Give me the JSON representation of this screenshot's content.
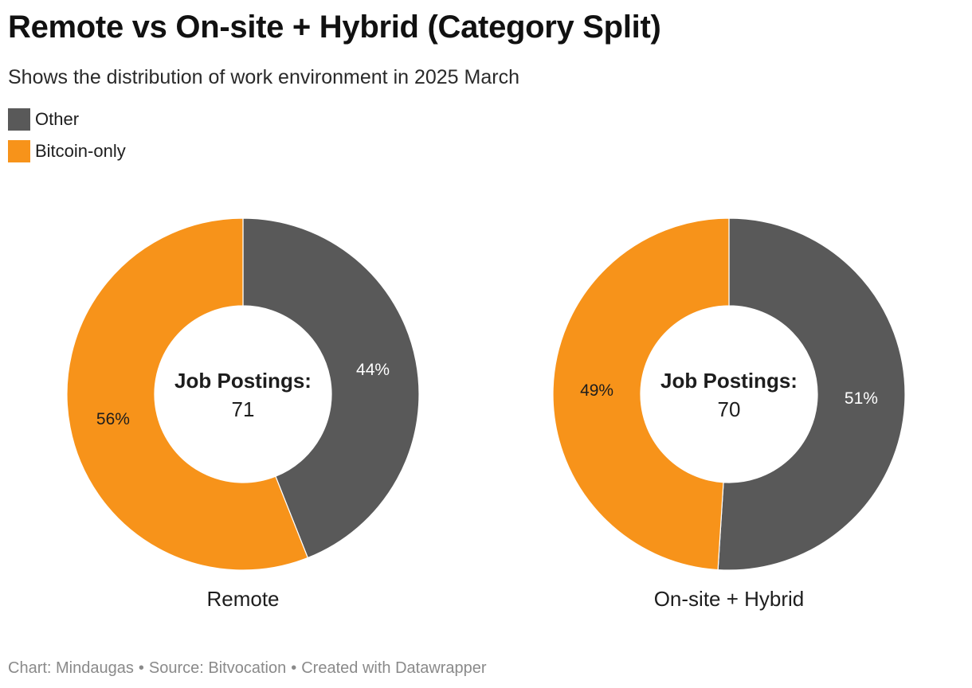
{
  "header": {
    "title": "Remote vs On-site + Hybrid (Category Split)",
    "subtitle": "Shows the distribution of work environment in 2025 March"
  },
  "legend": {
    "items": [
      {
        "label": "Other",
        "color": "#595959"
      },
      {
        "label": "Bitcoin-only",
        "color": "#f7931a"
      }
    ]
  },
  "chart_data": [
    {
      "type": "pie",
      "variant": "donut",
      "name": "Remote",
      "center_label": "Job Postings:",
      "center_value": "71",
      "slices": [
        {
          "label": "Other",
          "value": 44,
          "display": "44%",
          "color": "#595959",
          "label_color": "#ffffff"
        },
        {
          "label": "Bitcoin-only",
          "value": 56,
          "display": "56%",
          "color": "#f7931a",
          "label_color": "#1d1d1d"
        }
      ]
    },
    {
      "type": "pie",
      "variant": "donut",
      "name": "On-site + Hybrid",
      "center_label": "Job Postings:",
      "center_value": "70",
      "slices": [
        {
          "label": "Other",
          "value": 51,
          "display": "51%",
          "color": "#595959",
          "label_color": "#ffffff"
        },
        {
          "label": "Bitcoin-only",
          "value": 49,
          "display": "49%",
          "color": "#f7931a",
          "label_color": "#1d1d1d"
        }
      ]
    }
  ],
  "footer": {
    "chart_credit": "Chart: Mindaugas",
    "source": "Source: Bitvocation",
    "created_with": "Created with Datawrapper",
    "separator": "•"
  }
}
